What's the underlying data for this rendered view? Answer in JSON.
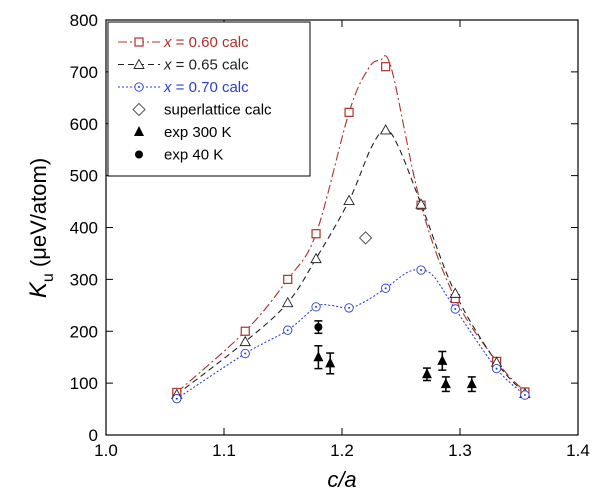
{
  "chart_data": {
    "type": "line",
    "xlabel": "c/a",
    "ylabel": {
      "main": "K",
      "sub": "u",
      "units": " (μeV/atom)"
    },
    "xlim": [
      1.0,
      1.4
    ],
    "ylim": [
      0,
      800
    ],
    "xticks": [
      1.0,
      1.1,
      1.2,
      1.3,
      1.4
    ],
    "xtick_labels": [
      "1.0",
      "1.1",
      "1.2",
      "1.3",
      "1.4"
    ],
    "yticks": [
      0,
      100,
      200,
      300,
      400,
      500,
      600,
      700,
      800
    ],
    "ytick_labels": [
      "0",
      "100",
      "200",
      "300",
      "400",
      "500",
      "600",
      "700",
      "800"
    ],
    "grid": false,
    "legend_position": "top-left",
    "series": [
      {
        "name": "x = 0.60 calc",
        "name_parts": [
          "x",
          " = 0.60 calc"
        ],
        "color": "#b0302a",
        "marker": "open-square",
        "line": "dash-dot",
        "x": [
          1.06,
          1.118,
          1.154,
          1.178,
          1.206,
          1.237,
          1.267,
          1.296,
          1.331,
          1.355
        ],
        "y": [
          82,
          200,
          300,
          388,
          622,
          710,
          443,
          263,
          142,
          83
        ],
        "curve_x": [
          1.06,
          1.118,
          1.154,
          1.178,
          1.206,
          1.222,
          1.232,
          1.242,
          1.267,
          1.296,
          1.331,
          1.355
        ],
        "curve_y": [
          82,
          200,
          300,
          388,
          622,
          705,
          722,
          705,
          443,
          263,
          142,
          83
        ]
      },
      {
        "name": "x = 0.65 calc",
        "name_parts": [
          "x",
          " = 0.65 calc"
        ],
        "color": "#222222",
        "marker": "open-triangle",
        "line": "dashed",
        "x": [
          1.06,
          1.118,
          1.154,
          1.178,
          1.206,
          1.237,
          1.267,
          1.296,
          1.331,
          1.355
        ],
        "y": [
          78,
          180,
          255,
          340,
          452,
          588,
          445,
          273,
          140,
          80
        ],
        "curve_x": [
          1.06,
          1.118,
          1.154,
          1.178,
          1.206,
          1.225,
          1.237,
          1.248,
          1.267,
          1.296,
          1.331,
          1.355
        ],
        "curve_y": [
          78,
          180,
          255,
          340,
          452,
          555,
          588,
          555,
          445,
          273,
          140,
          80
        ]
      },
      {
        "name": "x = 0.70 calc",
        "name_parts": [
          "x",
          " = 0.70 calc"
        ],
        "color": "#2b3fd6",
        "marker": "open-circle-dot",
        "line": "dotted",
        "x": [
          1.06,
          1.118,
          1.154,
          1.178,
          1.206,
          1.237,
          1.267,
          1.296,
          1.331,
          1.355
        ],
        "y": [
          70,
          157,
          202,
          247,
          245,
          283,
          318,
          243,
          128,
          77
        ],
        "curve_x": [
          1.06,
          1.118,
          1.154,
          1.178,
          1.19,
          1.206,
          1.22,
          1.237,
          1.255,
          1.267,
          1.278,
          1.296,
          1.331,
          1.355
        ],
        "curve_y": [
          70,
          157,
          202,
          247,
          250,
          245,
          258,
          283,
          313,
          318,
          305,
          243,
          128,
          77
        ]
      },
      {
        "name": "superlattice calc",
        "color": "#555555",
        "marker": "open-diamond",
        "line": "none",
        "x": [
          1.22
        ],
        "y": [
          380
        ]
      },
      {
        "name": "exp 300 K",
        "color": "#000000",
        "marker": "filled-triangle",
        "line": "none",
        "x": [
          1.18,
          1.19,
          1.272,
          1.285,
          1.288,
          1.31
        ],
        "y": [
          150,
          138,
          117,
          143,
          98,
          98
        ],
        "err": [
          22,
          20,
          12,
          18,
          14,
          14
        ]
      },
      {
        "name": "exp 40 K",
        "color": "#000000",
        "marker": "filled-circle",
        "line": "none",
        "x": [
          1.18
        ],
        "y": [
          208
        ],
        "err": [
          12
        ]
      }
    ]
  }
}
